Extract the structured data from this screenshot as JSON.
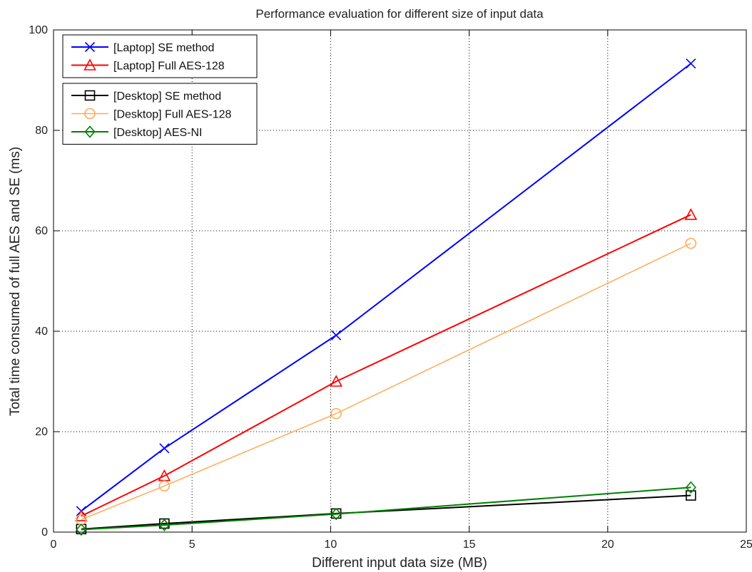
{
  "chart_data": {
    "type": "line",
    "title": "Performance evaluation for different size of input data",
    "xlabel": "Different input data size (MB)",
    "ylabel": "Total time consumed of full AES and SE (ms)",
    "xlim": [
      0,
      25
    ],
    "ylim": [
      0,
      100
    ],
    "x_ticks": [
      0,
      5,
      10,
      15,
      20,
      25
    ],
    "y_ticks": [
      0,
      20,
      40,
      60,
      80,
      100
    ],
    "grid": true,
    "legend_placement": "top-left",
    "series": [
      {
        "name": "[Laptop] SE method",
        "color": "#0000ff",
        "marker": "x",
        "linewidth": 2,
        "points": [
          [
            1,
            4.2
          ],
          [
            4,
            16.7
          ],
          [
            10.2,
            39.2
          ],
          [
            23,
            93.3
          ]
        ]
      },
      {
        "name": "[Laptop] Full AES-128",
        "color": "#ff0000",
        "marker": "triangle",
        "linewidth": 2,
        "points": [
          [
            1,
            3.2
          ],
          [
            4,
            11.2
          ],
          [
            10.2,
            30.0
          ],
          [
            23,
            63.2
          ]
        ]
      },
      {
        "name": "[Desktop] SE method",
        "color": "#000000",
        "marker": "square",
        "linewidth": 2,
        "points": [
          [
            1,
            0.6
          ],
          [
            4,
            1.7
          ],
          [
            10.2,
            3.7
          ],
          [
            23,
            7.3
          ]
        ]
      },
      {
        "name": "[Desktop] Full AES-128",
        "color": "#ffaa55",
        "marker": "circle",
        "linewidth": 1.5,
        "points": [
          [
            1,
            2.5
          ],
          [
            4,
            9.2
          ],
          [
            10.2,
            23.6
          ],
          [
            23,
            57.5
          ]
        ]
      },
      {
        "name": "[Desktop] AES-NI",
        "color": "#008000",
        "marker": "diamond",
        "linewidth": 2,
        "points": [
          [
            1,
            0.5
          ],
          [
            4,
            1.4
          ],
          [
            10.2,
            3.6
          ],
          [
            23,
            8.9
          ]
        ]
      }
    ],
    "legend_groups": [
      [
        0,
        1
      ],
      [
        2,
        3,
        4
      ]
    ]
  }
}
